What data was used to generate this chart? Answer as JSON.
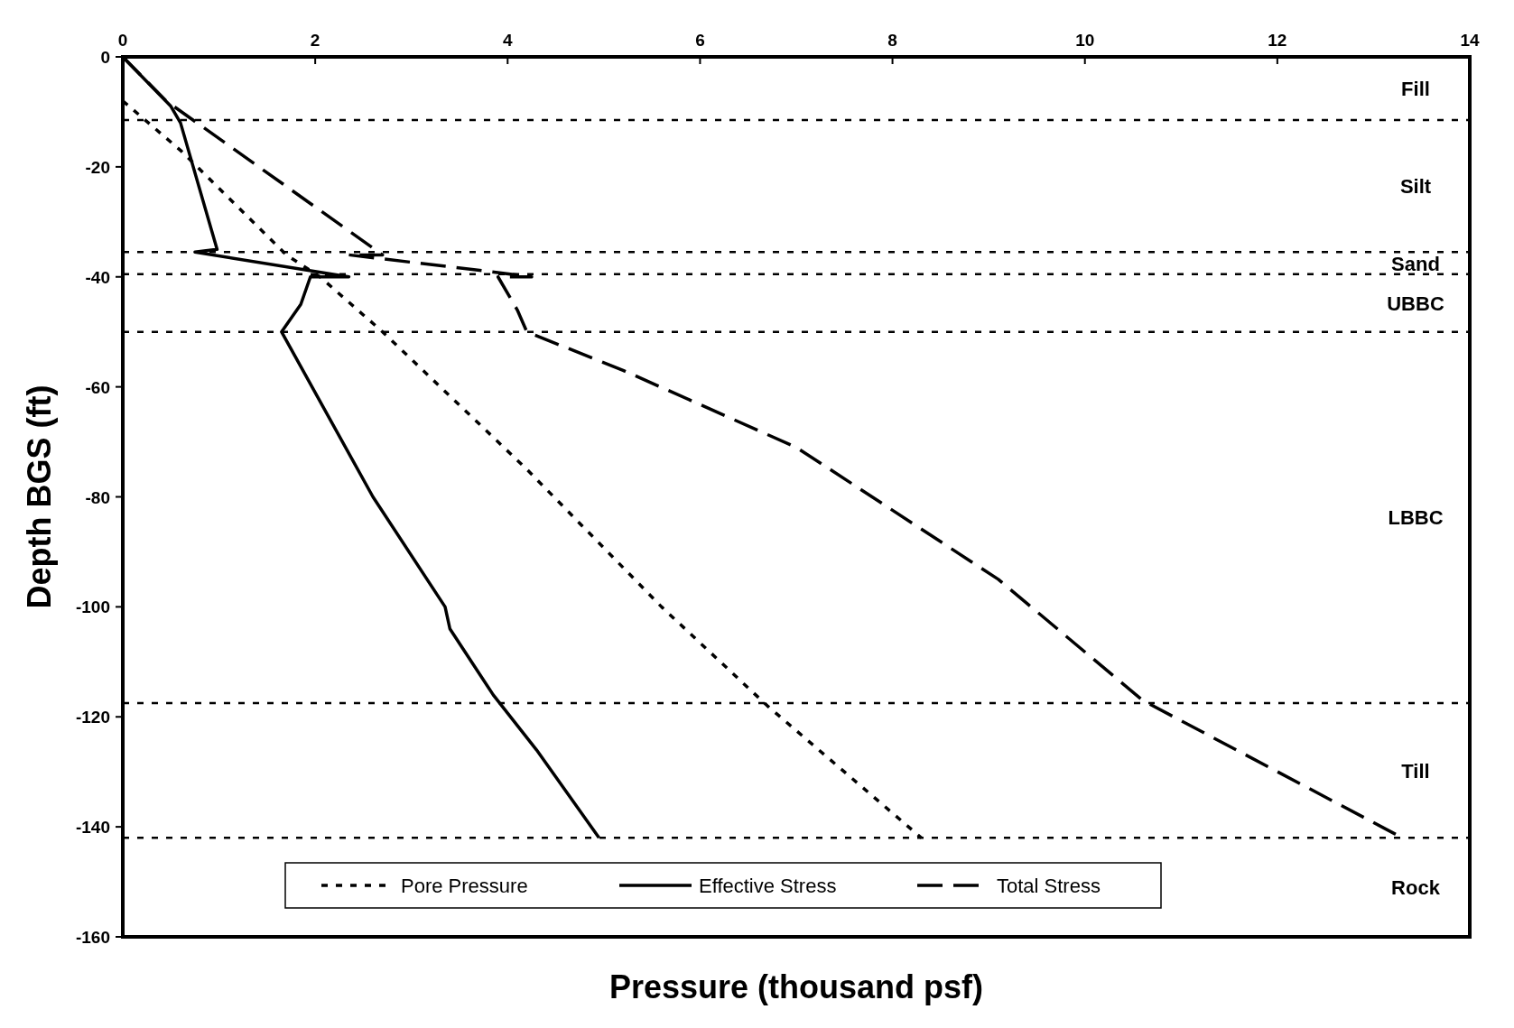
{
  "chart_data": {
    "type": "line",
    "xlabel": "Pressure (thousand psf)",
    "ylabel": "Depth BGS (ft)",
    "xlim": [
      0,
      14
    ],
    "xticks": [
      0,
      2,
      4,
      6,
      8,
      10,
      12,
      14
    ],
    "ylim": [
      -160,
      0
    ],
    "yticks": [
      -160,
      -140,
      -120,
      -100,
      -80,
      -60,
      -40,
      -20,
      0
    ],
    "legend": "bottom",
    "marker": "none",
    "series": [
      {
        "name": "Pore Pressure",
        "color": "#000000",
        "line_style": "dotted",
        "x": [
          0,
          0.6,
          1.7,
          2.05,
          2.7,
          4.2,
          5.6,
          6.7,
          8.3
        ],
        "values": [
          -8,
          -17,
          -36,
          -40,
          -50,
          -75,
          -100,
          -118,
          -142
        ]
      },
      {
        "name": "Effective Stress",
        "color": "#000000",
        "line_style": "solid",
        "x": [
          0,
          0.5,
          0.6,
          0.98,
          0.75,
          2.35,
          1.95,
          1.85,
          1.65,
          2.6,
          3.35,
          3.4,
          3.85,
          4.3,
          4.95
        ],
        "values": [
          0,
          -9,
          -12,
          -35,
          -35.5,
          -40,
          -40,
          -45,
          -50,
          -80,
          -100,
          -104,
          -116,
          -126,
          -142
        ]
      },
      {
        "name": "Total Stress",
        "color": "#000000",
        "line_style": "dashed",
        "x": [
          0,
          0.45,
          2.7,
          2.35,
          3.8,
          4.25,
          3.9,
          4.1,
          4.2,
          5.2,
          7.0,
          9.1,
          10.6,
          13.3
        ],
        "values": [
          0,
          -8,
          -36,
          -36,
          -39,
          -40,
          -40,
          -46,
          -50,
          -57,
          -71,
          -95,
          -117,
          -142
        ]
      }
    ],
    "ref_lines": [
      {
        "axis": "y",
        "value": -11.5,
        "line_style": "dotted"
      },
      {
        "axis": "y",
        "value": -35.5,
        "line_style": "dotted"
      },
      {
        "axis": "y",
        "value": -39.5,
        "line_style": "dotted"
      },
      {
        "axis": "y",
        "value": -50,
        "line_style": "dotted"
      },
      {
        "axis": "y",
        "value": -117.5,
        "line_style": "dotted"
      },
      {
        "axis": "y",
        "value": -142,
        "line_style": "dotted"
      }
    ],
    "annotations": [
      "Fill",
      "Silt",
      "Sand",
      "UBBC",
      "LBBC",
      "Till",
      "Rock"
    ]
  }
}
